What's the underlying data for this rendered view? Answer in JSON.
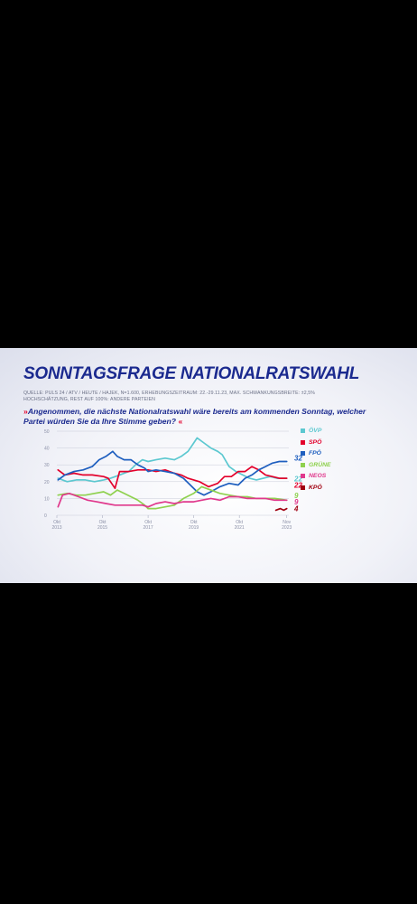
{
  "title": "SONNTAGSFRAGE NATIONALRATSWAHL",
  "source_line1": "QUELLE: PULS 24 / ATV / HEUTE / HAJEK, N=1.600, ERHEBUNGSZEITRAUM: 22.-29.11.23, MAX. SCHWANKUNGSBREITE: ±2,5%",
  "source_line2": "HOCHSCHÄTZUNG, REST AUF 100%: ANDERE PARTEIEN",
  "question_prefix": "»",
  "question": "Angenommen, die nächste Nationalratswahl wäre bereits am kommenden Sonntag, welcher Partei würden Sie da Ihre Stimme geben?",
  "question_suffix": "«",
  "chart_data": {
    "type": "line",
    "title": "SONNTAGSFRAGE NATIONALRATSWAHL",
    "xlim": [
      2013.75,
      2023.92
    ],
    "ylim": [
      0,
      50
    ],
    "yticks": [
      0,
      10,
      20,
      30,
      40,
      50
    ],
    "grid": true,
    "legend_position": "right",
    "xticks": [
      {
        "x": 2013.75,
        "label": [
          "Okt",
          "2013"
        ]
      },
      {
        "x": 2015.75,
        "label": [
          "Okt",
          "2015"
        ]
      },
      {
        "x": 2017.75,
        "label": [
          "Okt",
          "2017"
        ]
      },
      {
        "x": 2019.75,
        "label": [
          "Okt",
          "2019"
        ]
      },
      {
        "x": 2021.75,
        "label": [
          "Okt",
          "2021"
        ]
      },
      {
        "x": 2023.83,
        "label": [
          "Nov",
          "2023"
        ]
      }
    ],
    "series": [
      {
        "name": "ÖVP",
        "color": "#5cc8d0",
        "end_label": "22",
        "points": [
          [
            2013.8,
            22
          ],
          [
            2014.2,
            20
          ],
          [
            2014.6,
            21
          ],
          [
            2015.0,
            21
          ],
          [
            2015.4,
            20
          ],
          [
            2015.8,
            21
          ],
          [
            2016.1,
            22
          ],
          [
            2016.5,
            24
          ],
          [
            2016.9,
            26
          ],
          [
            2017.2,
            30
          ],
          [
            2017.5,
            33
          ],
          [
            2017.75,
            32
          ],
          [
            2018.1,
            33
          ],
          [
            2018.5,
            34
          ],
          [
            2018.9,
            33
          ],
          [
            2019.2,
            35
          ],
          [
            2019.5,
            38
          ],
          [
            2019.7,
            42
          ],
          [
            2019.9,
            46
          ],
          [
            2020.2,
            43
          ],
          [
            2020.5,
            40
          ],
          [
            2020.8,
            38
          ],
          [
            2021.0,
            36
          ],
          [
            2021.3,
            29
          ],
          [
            2021.6,
            26
          ],
          [
            2021.9,
            24
          ],
          [
            2022.2,
            22
          ],
          [
            2022.5,
            21
          ],
          [
            2022.8,
            22
          ],
          [
            2023.1,
            23
          ],
          [
            2023.4,
            22
          ],
          [
            2023.83,
            22
          ]
        ]
      },
      {
        "name": "SPÖ",
        "color": "#e3002b",
        "end_label": "22",
        "points": [
          [
            2013.8,
            27
          ],
          [
            2014.1,
            24
          ],
          [
            2014.5,
            25
          ],
          [
            2014.9,
            24
          ],
          [
            2015.3,
            24
          ],
          [
            2015.8,
            23
          ],
          [
            2016.0,
            22
          ],
          [
            2016.3,
            16
          ],
          [
            2016.5,
            26
          ],
          [
            2016.9,
            26
          ],
          [
            2017.3,
            27
          ],
          [
            2017.75,
            27
          ],
          [
            2018.1,
            26
          ],
          [
            2018.5,
            27
          ],
          [
            2018.9,
            25
          ],
          [
            2019.2,
            24
          ],
          [
            2019.5,
            22
          ],
          [
            2019.75,
            21
          ],
          [
            2020.0,
            20
          ],
          [
            2020.4,
            17
          ],
          [
            2020.8,
            19
          ],
          [
            2021.1,
            23
          ],
          [
            2021.4,
            23
          ],
          [
            2021.7,
            26
          ],
          [
            2022.0,
            26
          ],
          [
            2022.3,
            29
          ],
          [
            2022.6,
            27
          ],
          [
            2022.9,
            24
          ],
          [
            2023.2,
            23
          ],
          [
            2023.5,
            22
          ],
          [
            2023.83,
            22
          ]
        ]
      },
      {
        "name": "FPÖ",
        "color": "#1f5fbf",
        "end_label": "32",
        "points": [
          [
            2013.8,
            21
          ],
          [
            2014.1,
            24
          ],
          [
            2014.5,
            26
          ],
          [
            2014.9,
            27
          ],
          [
            2015.3,
            29
          ],
          [
            2015.6,
            33
          ],
          [
            2015.9,
            35
          ],
          [
            2016.2,
            38
          ],
          [
            2016.4,
            35
          ],
          [
            2016.7,
            33
          ],
          [
            2017.0,
            33
          ],
          [
            2017.3,
            30
          ],
          [
            2017.6,
            28
          ],
          [
            2017.75,
            26
          ],
          [
            2018.1,
            27
          ],
          [
            2018.5,
            26
          ],
          [
            2018.9,
            25
          ],
          [
            2019.3,
            22
          ],
          [
            2019.6,
            18
          ],
          [
            2019.9,
            14
          ],
          [
            2020.2,
            12
          ],
          [
            2020.5,
            14
          ],
          [
            2020.9,
            17
          ],
          [
            2021.3,
            19
          ],
          [
            2021.7,
            18
          ],
          [
            2022.0,
            22
          ],
          [
            2022.3,
            24
          ],
          [
            2022.6,
            27
          ],
          [
            2022.9,
            29
          ],
          [
            2023.2,
            31
          ],
          [
            2023.5,
            32
          ],
          [
            2023.83,
            32
          ]
        ]
      },
      {
        "name": "GRÜNE",
        "color": "#8fd14f",
        "end_label": "9",
        "points": [
          [
            2013.8,
            12
          ],
          [
            2014.2,
            13
          ],
          [
            2014.6,
            12
          ],
          [
            2015.0,
            12
          ],
          [
            2015.4,
            13
          ],
          [
            2015.8,
            14
          ],
          [
            2016.1,
            12
          ],
          [
            2016.4,
            15
          ],
          [
            2016.7,
            13
          ],
          [
            2017.0,
            11
          ],
          [
            2017.3,
            9
          ],
          [
            2017.6,
            6
          ],
          [
            2017.75,
            4
          ],
          [
            2018.1,
            4
          ],
          [
            2018.5,
            5
          ],
          [
            2018.9,
            6
          ],
          [
            2019.3,
            10
          ],
          [
            2019.75,
            13
          ],
          [
            2020.1,
            17
          ],
          [
            2020.5,
            15
          ],
          [
            2020.9,
            13
          ],
          [
            2021.3,
            12
          ],
          [
            2021.7,
            11
          ],
          [
            2022.1,
            11
          ],
          [
            2022.5,
            10
          ],
          [
            2022.9,
            10
          ],
          [
            2023.3,
            10
          ],
          [
            2023.83,
            9
          ]
        ]
      },
      {
        "name": "NEOS",
        "color": "#e0388c",
        "end_label": "9",
        "points": [
          [
            2013.8,
            5
          ],
          [
            2014.0,
            12
          ],
          [
            2014.3,
            13
          ],
          [
            2014.7,
            11
          ],
          [
            2015.1,
            9
          ],
          [
            2015.5,
            8
          ],
          [
            2015.9,
            7
          ],
          [
            2016.3,
            6
          ],
          [
            2016.7,
            6
          ],
          [
            2017.1,
            6
          ],
          [
            2017.5,
            6
          ],
          [
            2017.75,
            5
          ],
          [
            2018.1,
            7
          ],
          [
            2018.5,
            8
          ],
          [
            2018.9,
            7
          ],
          [
            2019.3,
            8
          ],
          [
            2019.75,
            8
          ],
          [
            2020.1,
            9
          ],
          [
            2020.5,
            10
          ],
          [
            2020.9,
            9
          ],
          [
            2021.3,
            11
          ],
          [
            2021.7,
            11
          ],
          [
            2022.1,
            10
          ],
          [
            2022.5,
            10
          ],
          [
            2022.9,
            10
          ],
          [
            2023.3,
            9
          ],
          [
            2023.83,
            9
          ]
        ]
      },
      {
        "name": "KPÖ",
        "color": "#a00010",
        "end_label": "4",
        "points": [
          [
            2023.35,
            3
          ],
          [
            2023.55,
            4
          ],
          [
            2023.7,
            3
          ],
          [
            2023.83,
            4
          ]
        ]
      }
    ]
  }
}
